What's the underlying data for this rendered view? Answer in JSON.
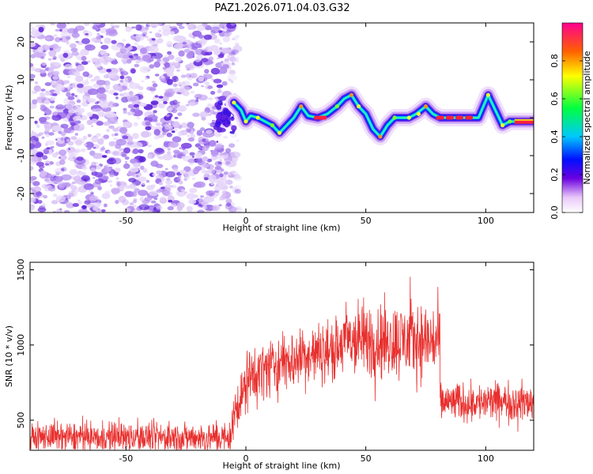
{
  "title": "PAZ1.2026.071.04.03.G32",
  "chart_data": [
    {
      "type": "heatmap",
      "name": "spectrogram",
      "xlabel": "Height of straight line (km)",
      "ylabel": "Frequency (Hz)",
      "xlim": [
        -90,
        120
      ],
      "ylim": [
        -25,
        25
      ],
      "xticks": [
        -50,
        0,
        50,
        100
      ],
      "yticks": [
        -20,
        -10,
        0,
        10,
        20
      ],
      "noise_region_x": [
        -90,
        -6
      ],
      "ridge": {
        "x": [
          -5,
          -2,
          0,
          2,
          5,
          8,
          11,
          14,
          17,
          20,
          23,
          26,
          30,
          34,
          38,
          41,
          44,
          47,
          50,
          53,
          56,
          59,
          62,
          65,
          68,
          71,
          75,
          78,
          81,
          85,
          89,
          93,
          97,
          101,
          104,
          107,
          110,
          115,
          120
        ],
        "y": [
          4,
          2,
          -1,
          0.5,
          0,
          -1,
          -2,
          -4,
          -2,
          0,
          3,
          0.5,
          0,
          1,
          3,
          5,
          6,
          3,
          1,
          -3,
          -5,
          -2,
          0,
          0,
          0,
          1,
          3,
          1,
          0,
          0,
          0,
          0,
          0,
          6,
          2,
          -2,
          -1,
          -1,
          -1
        ]
      },
      "colorbar": {
        "label": "Normalized spectral amplitude",
        "range": [
          0,
          1
        ],
        "ticks": [
          0.0,
          0.2,
          0.4,
          0.6,
          0.8
        ],
        "tick_labels": [
          "0.0",
          "0.2",
          "0.4",
          "0.6",
          "0.8"
        ]
      }
    },
    {
      "type": "line",
      "name": "snr",
      "xlabel": "Height of straight line (km)",
      "ylabel": "SNR (10 * v/v)",
      "xlim": [
        -90,
        120
      ],
      "ylim": [
        300,
        1550
      ],
      "xticks": [
        -50,
        0,
        50,
        100
      ],
      "yticks": [
        500,
        1000,
        1500
      ],
      "color": "#e8302e",
      "segments": [
        {
          "x_range": [
            -90,
            -6
          ],
          "mean": 385,
          "spread": 55
        },
        {
          "x_range": [
            -6,
            0
          ],
          "mean_start": 400,
          "mean_end": 720,
          "spread": 80
        },
        {
          "x_range": [
            0,
            40
          ],
          "mean_start": 720,
          "mean_end": 980,
          "spread": 110
        },
        {
          "x_range": [
            40,
            81
          ],
          "mean": 1030,
          "spread": 140
        },
        {
          "x_range": [
            81,
            120
          ],
          "mean": 620,
          "spread": 70
        }
      ]
    }
  ]
}
